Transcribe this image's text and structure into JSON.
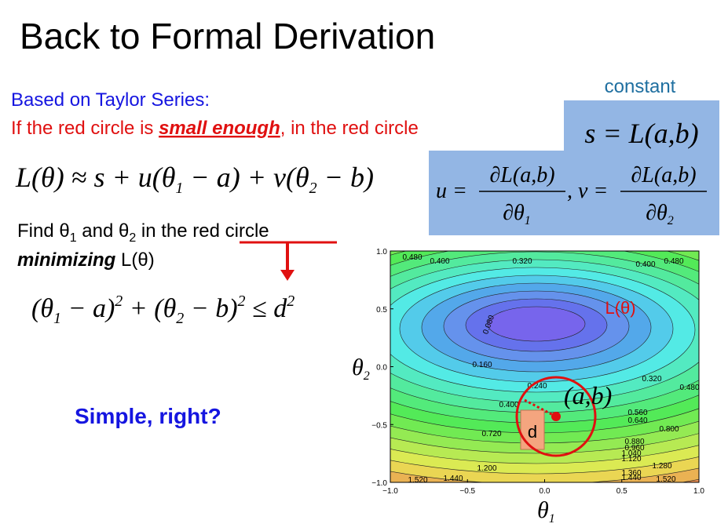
{
  "title": "Back to Formal Derivation",
  "taylor": {
    "heading": "Based on Taylor Series:",
    "line": [
      "If the red circle is ",
      "small enough",
      ", in the red circle"
    ]
  },
  "approx_formula": [
    "L(θ) ≈ s + u(θ",
    "1",
    " − a) + v(θ",
    "2",
    " − b)"
  ],
  "find": [
    "Find θ",
    "1",
    " and θ",
    "2",
    "  in the ",
    "red circle"
  ],
  "minimizing": [
    "minimizing",
    " L(θ)"
  ],
  "constraint": [
    "(θ",
    "1",
    " − a)",
    "2",
    " + (θ",
    "2",
    " − b)",
    "2",
    " ≤ d",
    "2"
  ],
  "closing": "Simple, right?",
  "constant_label": "constant",
  "s_formula": "s = L(a,b)",
  "u_formula": {
    "left": "u =",
    "num": "∂L(a,b)",
    "den": [
      "∂θ",
      "1"
    ]
  },
  "v_formula": {
    "left": ", v =",
    "num": "∂L(a,b)",
    "den": [
      "∂θ",
      "2"
    ]
  },
  "plot": {
    "x_label": [
      "θ",
      "1"
    ],
    "y_label": [
      "θ",
      "2"
    ],
    "xticks": [
      "−1.0",
      "−0.5",
      "0.0",
      "0.5",
      "1.0"
    ],
    "yticks": [
      "1.0",
      "0.5",
      "0.0",
      "−0.5",
      "−1.0"
    ],
    "contour_labels": [
      "0.480",
      "0.400",
      "0.320",
      "0.400",
      "0.480",
      "0.080",
      "0.160",
      "0.240",
      "0.320",
      "0.480",
      "0.400",
      "0.560",
      "0.640",
      "0.720",
      "0.800",
      "0.880",
      "0.960",
      "1.040",
      "1.120",
      "1.200",
      "1.280",
      "1.360",
      "1.440",
      "1.520",
      "1.440",
      "1.520"
    ],
    "loss_label": "L(θ)",
    "point_label": "(a,b)",
    "radius_label": "d"
  }
}
